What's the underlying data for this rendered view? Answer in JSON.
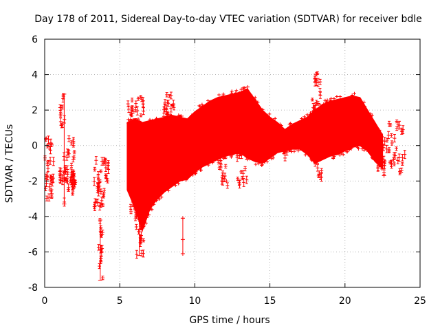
{
  "chart_data": {
    "type": "scatter",
    "title": "Day 178 of 2011, Sidereal Day-to-day VTEC variation (SDTVAR) for receiver bdle",
    "xlabel": "GPS time / hours",
    "ylabel": "SDTVAR / TECUs",
    "xlim": [
      0,
      25
    ],
    "ylim": [
      -8,
      6
    ],
    "xticks": [
      0,
      5,
      10,
      15,
      20,
      25
    ],
    "yticks": [
      -8,
      -6,
      -4,
      -2,
      0,
      2,
      4,
      6
    ],
    "xtick_labels": [
      "0",
      "5",
      "10",
      "15",
      "20",
      "25"
    ],
    "ytick_labels": [
      "-8",
      "-6",
      "-4",
      "-2",
      "0",
      "2",
      "4",
      "6"
    ],
    "grid": true,
    "series_color": "#ff0000",
    "dense_band": {
      "x": [
        5.5,
        6.0,
        6.5,
        7.0,
        7.5,
        8.0,
        8.5,
        9.0,
        9.5,
        10.0,
        10.5,
        11.0,
        11.5,
        12.0,
        12.5,
        13.0,
        13.5,
        14.0,
        14.5,
        15.0,
        15.5,
        16.0,
        16.5,
        17.0,
        17.5,
        18.0,
        18.5,
        19.0,
        19.5,
        20.0,
        20.5,
        21.0,
        21.5,
        22.0,
        22.5
      ],
      "upper": [
        1.3,
        1.5,
        1.3,
        1.4,
        1.5,
        1.6,
        1.7,
        1.6,
        1.5,
        1.9,
        2.2,
        2.5,
        2.7,
        2.8,
        2.9,
        3.0,
        3.2,
        2.6,
        2.0,
        1.6,
        1.3,
        0.9,
        1.2,
        1.4,
        1.6,
        2.0,
        2.3,
        2.5,
        2.6,
        2.7,
        2.8,
        2.7,
        2.0,
        1.3,
        0.6
      ],
      "lower": [
        -2.5,
        -3.5,
        -4.8,
        -3.6,
        -3.0,
        -2.6,
        -2.3,
        -2.0,
        -1.9,
        -1.5,
        -1.2,
        -1.0,
        -0.8,
        -0.6,
        -0.5,
        -0.4,
        -0.7,
        -0.9,
        -1.0,
        -0.7,
        -0.4,
        -0.3,
        -0.2,
        -0.2,
        -0.5,
        -1.0,
        -0.8,
        -0.6,
        -0.5,
        -0.3,
        -0.1,
        0.0,
        -0.3,
        -0.9,
        -1.3
      ]
    },
    "point_clusters": [
      {
        "x": [
          0.0,
          0.6
        ],
        "y": [
          -3.0,
          0.4
        ],
        "n": 30
      },
      {
        "x": [
          1.0,
          1.4
        ],
        "y": [
          -2.0,
          -1.4
        ],
        "n": 12
      },
      {
        "x": [
          1.0,
          1.2
        ],
        "y": [
          1.0,
          2.2
        ],
        "n": 8
      },
      {
        "x": [
          1.2,
          1.4
        ],
        "y": [
          -3.3,
          2.9
        ],
        "n": 6
      },
      {
        "x": [
          1.4,
          2.0
        ],
        "y": [
          -2.5,
          0.5
        ],
        "n": 30
      },
      {
        "x": [
          1.8,
          2.1
        ],
        "y": [
          -3.2,
          -1.5
        ],
        "n": 12
      },
      {
        "x": [
          3.3,
          4.0
        ],
        "y": [
          -3.5,
          -0.8
        ],
        "n": 30
      },
      {
        "x": [
          3.5,
          3.9
        ],
        "y": [
          -7.7,
          -4.0
        ],
        "n": 16
      },
      {
        "x": [
          4.0,
          4.3
        ],
        "y": [
          -2.0,
          -0.8
        ],
        "n": 10
      },
      {
        "x": [
          5.5,
          6.6
        ],
        "y": [
          1.2,
          2.8
        ],
        "n": 24
      },
      {
        "x": [
          5.7,
          6.1
        ],
        "y": [
          -4.5,
          -2.5
        ],
        "n": 10
      },
      {
        "x": [
          6.1,
          6.6
        ],
        "y": [
          -6.2,
          -4.0
        ],
        "n": 18
      },
      {
        "x": [
          7.9,
          8.8
        ],
        "y": [
          1.0,
          2.9
        ],
        "n": 20
      },
      {
        "x": [
          11.5,
          12.2
        ],
        "y": [
          -2.5,
          -0.3
        ],
        "n": 16
      },
      {
        "x": [
          12.8,
          13.5
        ],
        "y": [
          -2.2,
          0.0
        ],
        "n": 18
      },
      {
        "x": [
          15.8,
          16.3
        ],
        "y": [
          -0.8,
          0.9
        ],
        "n": 14
      },
      {
        "x": [
          17.8,
          18.4
        ],
        "y": [
          2.0,
          4.1
        ],
        "n": 18
      },
      {
        "x": [
          17.9,
          18.5
        ],
        "y": [
          -1.8,
          -0.6
        ],
        "n": 10
      },
      {
        "x": [
          22.0,
          23.0
        ],
        "y": [
          -1.6,
          0.5
        ],
        "n": 20
      },
      {
        "x": [
          22.8,
          24.0
        ],
        "y": [
          -1.5,
          1.4
        ],
        "n": 30
      }
    ],
    "isolated_points": [
      {
        "x": 9.2,
        "y": -4.1
      },
      {
        "x": 9.2,
        "y": -5.3
      },
      {
        "x": 9.2,
        "y": -6.1
      },
      {
        "x": 0.1,
        "y": 0.4
      },
      {
        "x": 12.1,
        "y": -2.0
      },
      {
        "x": 22.6,
        "y": -1.7
      }
    ],
    "error_bars": [
      {
        "x": 1.3,
        "y_low": -3.3,
        "y_high": 2.9
      },
      {
        "x": 3.7,
        "y_low": -7.6,
        "y_high": -4.2
      },
      {
        "x": 9.2,
        "y_low": -6.1,
        "y_high": -4.1
      },
      {
        "x": 6.3,
        "y_low": -6.2,
        "y_high": -4.0
      }
    ]
  }
}
